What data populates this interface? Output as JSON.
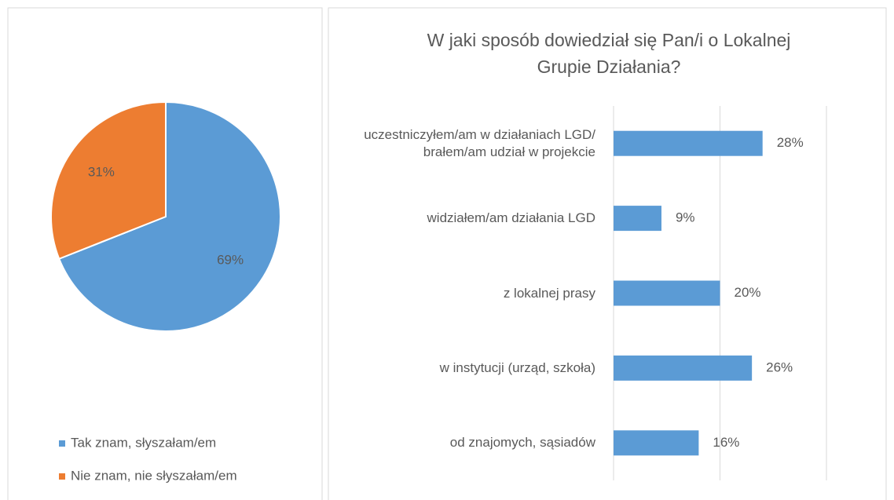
{
  "chart_data": [
    {
      "type": "pie",
      "categories": [
        "Tak znam, słyszałam/em",
        "Nie znam, nie słyszałam/em"
      ],
      "values": [
        69,
        31
      ],
      "value_labels": [
        "69%",
        "31%"
      ],
      "colors": [
        "#5b9bd5",
        "#ed7d31"
      ],
      "legend": "bottom"
    },
    {
      "type": "barh",
      "title": "W jaki sposób dowiedział się Pan/i o Lokalnej Grupie Działania?",
      "categories": [
        "uczestniczyłem/am w działaniach LGD/ brałem/am udział w projekcie",
        "widziałem/am działania LGD",
        "z lokalnej prasy",
        "w instytucji (urząd, szkoła)",
        "od znajomych, sąsiadów"
      ],
      "values": [
        28,
        9,
        20,
        26,
        16
      ],
      "value_labels": [
        "28%",
        "9%",
        "20%",
        "26%",
        "16%"
      ],
      "color": "#5b9bd5",
      "xlim": [
        0,
        40
      ],
      "xticks": [
        0,
        20,
        40
      ],
      "grid": true
    }
  ]
}
